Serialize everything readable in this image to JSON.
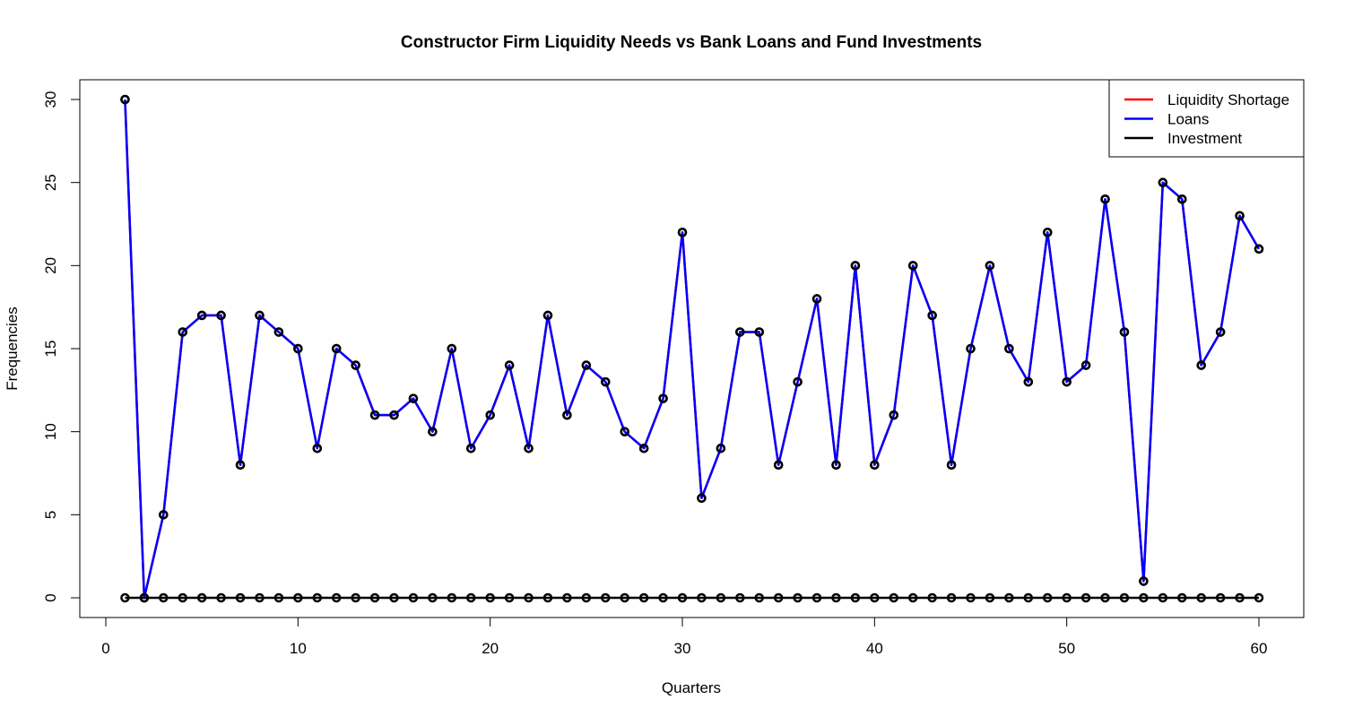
{
  "chart_data": {
    "type": "line",
    "title": "Constructor Firm Liquidity Needs vs Bank Loans and Fund Investments",
    "xlabel": "Quarters",
    "ylabel": "Frequencies",
    "xlim": [
      0,
      60
    ],
    "ylim": [
      0,
      30
    ],
    "x_ticks": [
      0,
      10,
      20,
      30,
      40,
      50,
      60
    ],
    "y_ticks": [
      0,
      5,
      10,
      15,
      20,
      25,
      30
    ],
    "grid": false,
    "legend_position": "top-right",
    "x": [
      1,
      2,
      3,
      4,
      5,
      6,
      7,
      8,
      9,
      10,
      11,
      12,
      13,
      14,
      15,
      16,
      17,
      18,
      19,
      20,
      21,
      22,
      23,
      24,
      25,
      26,
      27,
      28,
      29,
      30,
      31,
      32,
      33,
      34,
      35,
      36,
      37,
      38,
      39,
      40,
      41,
      42,
      43,
      44,
      45,
      46,
      47,
      48,
      49,
      50,
      51,
      52,
      53,
      54,
      55,
      56,
      57,
      58,
      59,
      60
    ],
    "series": [
      {
        "name": "Liquidity Shortage",
        "color": "#ff0000",
        "values": [
          30,
          0,
          5,
          16,
          17,
          17,
          8,
          17,
          16,
          15,
          9,
          15,
          14,
          11,
          11,
          12,
          10,
          15,
          9,
          11,
          14,
          9,
          17,
          11,
          14,
          13,
          10,
          9,
          12,
          22,
          6,
          9,
          16,
          16,
          8,
          13,
          18,
          8,
          20,
          8,
          11,
          20,
          17,
          8,
          15,
          20,
          15,
          13,
          22,
          13,
          14,
          24,
          16,
          1,
          25,
          24,
          14,
          16,
          23,
          21
        ]
      },
      {
        "name": "Loans",
        "color": "#0000ff",
        "values": [
          30,
          0,
          5,
          16,
          17,
          17,
          8,
          17,
          16,
          15,
          9,
          15,
          14,
          11,
          11,
          12,
          10,
          15,
          9,
          11,
          14,
          9,
          17,
          11,
          14,
          13,
          10,
          9,
          12,
          22,
          6,
          9,
          16,
          16,
          8,
          13,
          18,
          8,
          20,
          8,
          11,
          20,
          17,
          8,
          15,
          20,
          15,
          13,
          22,
          13,
          14,
          24,
          16,
          1,
          25,
          24,
          14,
          16,
          23,
          21
        ]
      },
      {
        "name": "Investment",
        "color": "#000000",
        "values": [
          0,
          0,
          0,
          0,
          0,
          0,
          0,
          0,
          0,
          0,
          0,
          0,
          0,
          0,
          0,
          0,
          0,
          0,
          0,
          0,
          0,
          0,
          0,
          0,
          0,
          0,
          0,
          0,
          0,
          0,
          0,
          0,
          0,
          0,
          0,
          0,
          0,
          0,
          0,
          0,
          0,
          0,
          0,
          0,
          0,
          0,
          0,
          0,
          0,
          0,
          0,
          0,
          0,
          0,
          0,
          0,
          0,
          0,
          0,
          0
        ]
      }
    ]
  }
}
